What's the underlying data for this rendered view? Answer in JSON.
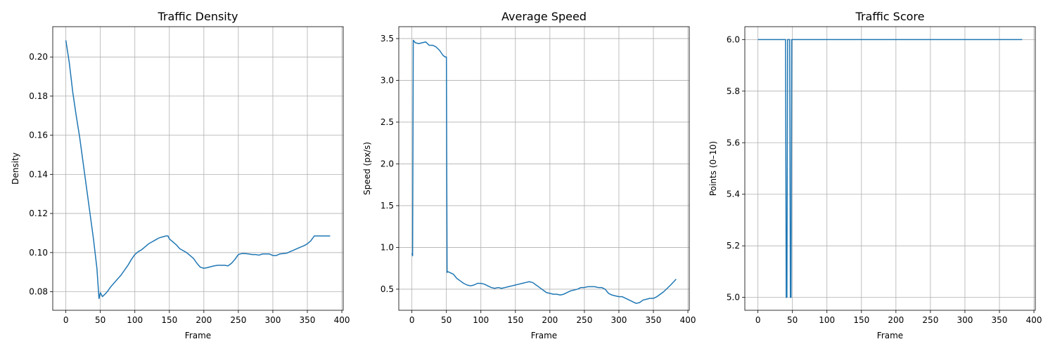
{
  "colors": {
    "series": "#1f77b4",
    "grid": "#b0b0b0",
    "axes": "#000000",
    "background": "#ffffff"
  },
  "chart_data": [
    {
      "type": "line",
      "title": "Traffic Density",
      "xlabel": "Frame",
      "ylabel": "Density",
      "xlim": [
        -19,
        402
      ],
      "ylim": [
        0.0705,
        0.2155
      ],
      "xticks": [
        0,
        50,
        100,
        150,
        200,
        250,
        300,
        350,
        400
      ],
      "yticks": [
        0.08,
        0.1,
        0.12,
        0.14,
        0.16,
        0.18,
        0.2
      ],
      "ytick_labels": [
        "0.08",
        "0.10",
        "0.12",
        "0.14",
        "0.16",
        "0.18",
        "0.20"
      ],
      "grid": true,
      "legend": "none",
      "series": [
        {
          "x": [
            0,
            5,
            10,
            15,
            20,
            25,
            30,
            35,
            40,
            45,
            48,
            50,
            53,
            56,
            60,
            65,
            70,
            75,
            80,
            85,
            90,
            95,
            100,
            105,
            110,
            115,
            120,
            125,
            130,
            135,
            140,
            145,
            148,
            150,
            155,
            160,
            165,
            170,
            175,
            180,
            185,
            190,
            195,
            200,
            205,
            210,
            215,
            220,
            225,
            230,
            235,
            240,
            245,
            250,
            255,
            260,
            265,
            270,
            275,
            280,
            285,
            290,
            295,
            300,
            305,
            310,
            315,
            320,
            325,
            330,
            335,
            340,
            345,
            350,
            355,
            360,
            365,
            370,
            375,
            380,
            383
          ],
          "y": [
            0.2085,
            0.197,
            0.182,
            0.17,
            0.159,
            0.146,
            0.133,
            0.12,
            0.107,
            0.092,
            0.0765,
            0.0795,
            0.0775,
            0.0785,
            0.08,
            0.0825,
            0.0845,
            0.0865,
            0.0885,
            0.091,
            0.0935,
            0.0965,
            0.099,
            0.1005,
            0.1015,
            0.103,
            0.1045,
            0.1055,
            0.1065,
            0.1075,
            0.108,
            0.1085,
            0.1085,
            0.107,
            0.1055,
            0.104,
            0.102,
            0.101,
            0.1,
            0.0985,
            0.097,
            0.0945,
            0.0925,
            0.092,
            0.0923,
            0.0928,
            0.0932,
            0.0935,
            0.0935,
            0.0935,
            0.0932,
            0.0945,
            0.0965,
            0.099,
            0.0995,
            0.0995,
            0.0993,
            0.099,
            0.099,
            0.0987,
            0.0993,
            0.0993,
            0.0993,
            0.0985,
            0.0985,
            0.0993,
            0.0995,
            0.0997,
            0.1005,
            0.1012,
            0.102,
            0.1028,
            0.1035,
            0.1045,
            0.106,
            0.1085,
            0.1085,
            0.1085,
            0.1085,
            0.1085,
            0.1085
          ]
        }
      ]
    },
    {
      "type": "line",
      "title": "Average Speed",
      "xlabel": "Frame",
      "ylabel": "Speed (px/s)",
      "xlim": [
        -19,
        402
      ],
      "ylim": [
        0.2475,
        3.6425
      ],
      "xticks": [
        0,
        50,
        100,
        150,
        200,
        250,
        300,
        350,
        400
      ],
      "yticks": [
        0.5,
        1.0,
        1.5,
        2.0,
        2.5,
        3.0,
        3.5
      ],
      "ytick_labels": [
        "0.5",
        "1.0",
        "1.5",
        "2.0",
        "2.5",
        "3.0",
        "3.5"
      ],
      "grid": true,
      "legend": "none",
      "series": [
        {
          "x": [
            0,
            1,
            2,
            5,
            10,
            15,
            20,
            25,
            30,
            35,
            40,
            45,
            48,
            50,
            51,
            52,
            55,
            60,
            65,
            70,
            75,
            80,
            85,
            90,
            95,
            100,
            105,
            110,
            115,
            120,
            125,
            130,
            135,
            140,
            145,
            150,
            155,
            160,
            165,
            170,
            175,
            180,
            185,
            190,
            195,
            200,
            205,
            210,
            215,
            220,
            225,
            230,
            235,
            240,
            245,
            250,
            255,
            260,
            265,
            270,
            275,
            280,
            285,
            290,
            295,
            300,
            305,
            310,
            315,
            320,
            325,
            330,
            335,
            340,
            345,
            350,
            355,
            360,
            365,
            370,
            375,
            383
          ],
          "y": [
            0.93,
            0.9,
            3.48,
            3.45,
            3.44,
            3.45,
            3.46,
            3.42,
            3.42,
            3.4,
            3.36,
            3.3,
            3.28,
            3.28,
            0.7,
            0.71,
            0.7,
            0.68,
            0.63,
            0.6,
            0.57,
            0.55,
            0.54,
            0.55,
            0.57,
            0.57,
            0.56,
            0.54,
            0.52,
            0.51,
            0.52,
            0.51,
            0.52,
            0.53,
            0.54,
            0.55,
            0.56,
            0.57,
            0.58,
            0.59,
            0.58,
            0.55,
            0.52,
            0.49,
            0.46,
            0.45,
            0.44,
            0.44,
            0.43,
            0.44,
            0.46,
            0.48,
            0.49,
            0.5,
            0.52,
            0.52,
            0.53,
            0.53,
            0.53,
            0.52,
            0.52,
            0.5,
            0.45,
            0.43,
            0.42,
            0.41,
            0.41,
            0.39,
            0.37,
            0.35,
            0.33,
            0.34,
            0.37,
            0.38,
            0.39,
            0.39,
            0.41,
            0.44,
            0.47,
            0.51,
            0.55,
            0.62
          ]
        }
      ]
    },
    {
      "type": "line",
      "title": "Traffic Score",
      "xlabel": "Frame",
      "ylabel": "Points (0–10)",
      "xlim": [
        -19,
        402
      ],
      "ylim": [
        4.95,
        6.05
      ],
      "xticks": [
        0,
        50,
        100,
        150,
        200,
        250,
        300,
        350,
        400
      ],
      "yticks": [
        5.0,
        5.2,
        5.4,
        5.6,
        5.8,
        6.0
      ],
      "ytick_labels": [
        "5.0",
        "5.2",
        "5.4",
        "5.6",
        "5.8",
        "6.0"
      ],
      "grid": true,
      "legend": "none",
      "series": [
        {
          "x": [
            0,
            40,
            41,
            42,
            43,
            44,
            45,
            46,
            47,
            48,
            49,
            50,
            383
          ],
          "y": [
            6.0,
            6.0,
            5.0,
            5.0,
            6.0,
            6.0,
            6.0,
            6.0,
            5.0,
            5.0,
            6.0,
            6.0,
            6.0
          ]
        }
      ]
    }
  ]
}
